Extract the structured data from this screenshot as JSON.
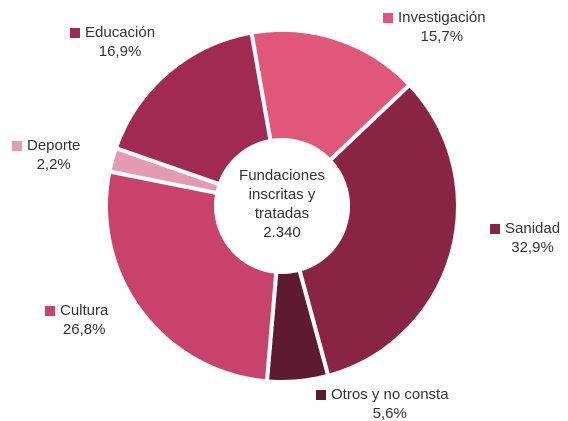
{
  "chart_data": {
    "type": "donut",
    "center_text": [
      "Fundaciones",
      "inscritas y",
      "tratadas",
      "2.340"
    ],
    "categories": [
      "Investigación",
      "Sanidad",
      "Otros y no consta",
      "Cultura",
      "Deporte",
      "Educación"
    ],
    "values": [
      15.7,
      32.9,
      5.6,
      26.8,
      2.2,
      16.9
    ],
    "value_labels": [
      "15,7%",
      "32,9%",
      "5,6%",
      "26,8%",
      "2,2%",
      "16,9%"
    ],
    "colors": [
      "#e0577a",
      "#8a2444",
      "#5e1a31",
      "#c9426c",
      "#e29bb1",
      "#a02a51"
    ]
  }
}
